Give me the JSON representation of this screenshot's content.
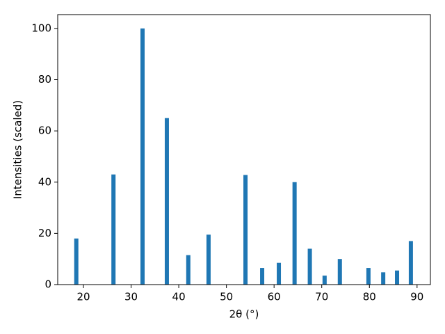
{
  "chart_data": {
    "type": "bar",
    "x": [
      18.5,
      26.3,
      32.4,
      37.5,
      42.0,
      46.25,
      54.0,
      57.5,
      61.0,
      64.3,
      67.5,
      70.6,
      73.8,
      79.8,
      82.9,
      85.8,
      88.7
    ],
    "values": [
      18,
      43,
      100,
      65,
      11.5,
      19.5,
      42.8,
      6.5,
      8.5,
      40,
      14,
      3.5,
      10,
      6.5,
      4.8,
      5.5,
      17
    ],
    "color": "#1f77b4",
    "xlabel": "2θ (°)",
    "ylabel": "Intensities (scaled)",
    "xlim": [
      14.6,
      92.8
    ],
    "xticks": [
      20,
      30,
      40,
      50,
      60,
      70,
      80,
      90
    ],
    "ylim": [
      0,
      105.4
    ],
    "yticks": [
      0,
      20,
      40,
      60,
      80,
      100
    ]
  }
}
